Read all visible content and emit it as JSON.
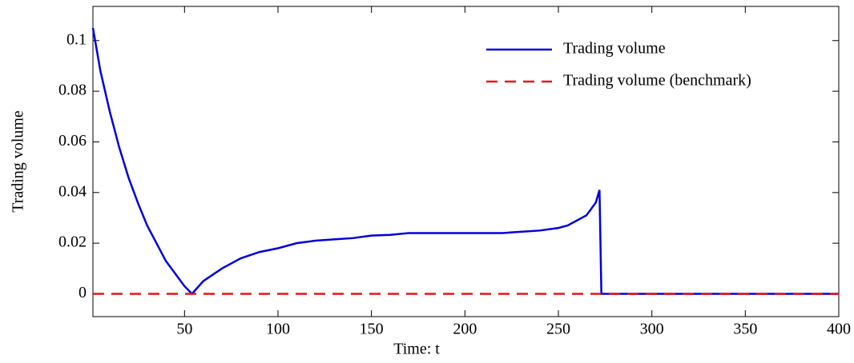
{
  "chart_data": {
    "type": "line",
    "xlabel": "Time: t",
    "ylabel": "Trading volume",
    "x": [
      1,
      5,
      10,
      15,
      20,
      25,
      30,
      35,
      40,
      45,
      50,
      54,
      60,
      70,
      80,
      90,
      100,
      110,
      120,
      130,
      140,
      150,
      160,
      170,
      180,
      190,
      200,
      210,
      220,
      230,
      240,
      250,
      255,
      260,
      265,
      270,
      272,
      273,
      280,
      300,
      350,
      400
    ],
    "series": [
      {
        "name": "Trading volume",
        "color": "#0000dd",
        "dash": "solid",
        "values": [
          0.105,
          0.088,
          0.072,
          0.058,
          0.046,
          0.036,
          0.027,
          0.02,
          0.013,
          0.008,
          0.003,
          0.0,
          0.005,
          0.01,
          0.014,
          0.0165,
          0.018,
          0.02,
          0.021,
          0.0215,
          0.022,
          0.023,
          0.0233,
          0.024,
          0.024,
          0.024,
          0.024,
          0.024,
          0.024,
          0.0245,
          0.025,
          0.026,
          0.027,
          0.029,
          0.031,
          0.036,
          0.041,
          0.0,
          0.0,
          0.0,
          0.0,
          0.0
        ]
      },
      {
        "name": "Trading volume (benchmark)",
        "color": "#ee1111",
        "dash": "dashed",
        "values": [
          0,
          0,
          0,
          0,
          0,
          0,
          0,
          0,
          0,
          0,
          0,
          0,
          0,
          0,
          0,
          0,
          0,
          0,
          0,
          0,
          0,
          0,
          0,
          0,
          0,
          0,
          0,
          0,
          0,
          0,
          0,
          0,
          0,
          0,
          0,
          0,
          0,
          0,
          0,
          0,
          0,
          0
        ]
      }
    ],
    "xlim": [
      1,
      400
    ],
    "xticks": [
      50,
      100,
      150,
      200,
      250,
      300,
      350,
      400
    ],
    "ylim": [
      -0.009,
      0.1135
    ],
    "yticks": [
      0,
      0.02,
      0.04,
      0.06,
      0.08,
      0.1
    ],
    "grid": false,
    "legend": "top-right"
  }
}
